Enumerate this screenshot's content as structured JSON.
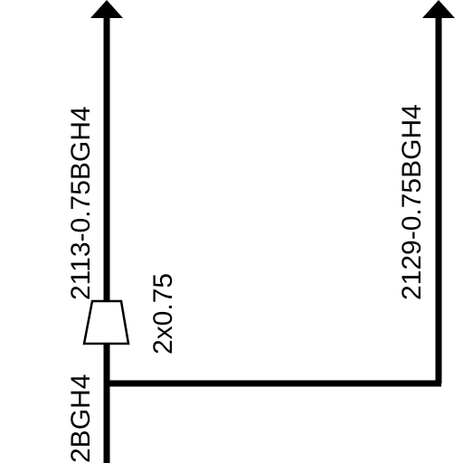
{
  "wires": {
    "left_upper_label": "2113-0.75BGH4",
    "right_label": "2129-0.75BGH4",
    "left_lower_label": "2BGH4",
    "splice_label": "2x0.75"
  },
  "colors": {
    "wire": "#000000",
    "background": "#ffffff"
  }
}
